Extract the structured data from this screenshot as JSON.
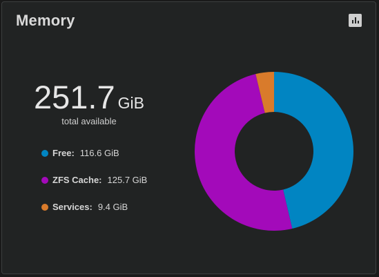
{
  "card": {
    "title": "Memory",
    "toggle_icon": "bar-chart-icon"
  },
  "summary": {
    "total_value": "251.7",
    "total_unit": "GiB",
    "caption": "total available"
  },
  "legend": [
    {
      "label": "Free:",
      "value": "116.6 GiB",
      "color": "#0185c2"
    },
    {
      "label": "ZFS Cache:",
      "value": "125.7 GiB",
      "color": "#a30aba"
    },
    {
      "label": "Services:",
      "value": "9.4 GiB",
      "color": "#d97b2b"
    }
  ],
  "chart_data": {
    "type": "pie",
    "donut": true,
    "categories": [
      "Free",
      "ZFS Cache",
      "Services"
    ],
    "values": [
      116.6,
      125.7,
      9.4
    ],
    "colors": [
      "#0185c2",
      "#a30aba",
      "#d97b2b"
    ],
    "unit": "GiB",
    "start_angle": "top",
    "direction": "clockwise"
  }
}
